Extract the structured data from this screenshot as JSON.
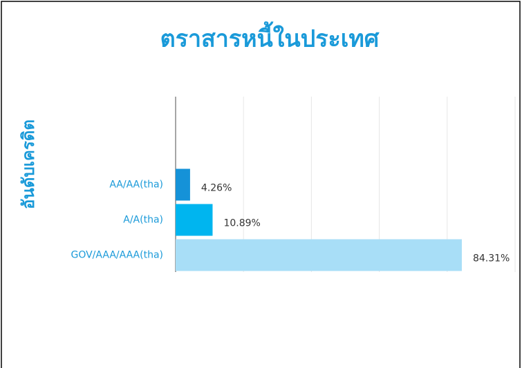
{
  "chart_data": {
    "type": "bar",
    "orientation": "horizontal",
    "title": "ตราสารหนี้ในประเทศ",
    "y_label": "อันดับเครดิต",
    "categories": [
      "AA/AA(tha)",
      "A/A(tha)",
      "GOV/AAA/AAA(tha)"
    ],
    "values": [
      4.26,
      10.89,
      84.31
    ],
    "value_labels": [
      "4.26%",
      "10.89%",
      "84.31%"
    ],
    "colors": [
      "#1592d8",
      "#00b5ef",
      "#a8def7"
    ],
    "xlim": [
      0,
      100
    ],
    "xticks": [
      0,
      20,
      40,
      60,
      80,
      100
    ],
    "grid": true
  }
}
